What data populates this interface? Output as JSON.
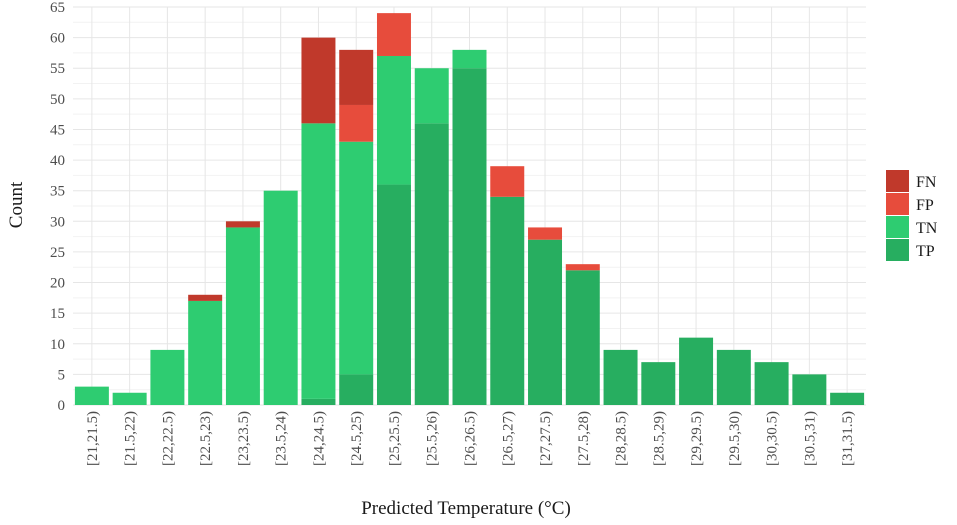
{
  "chart_data": {
    "type": "bar",
    "stacked": true,
    "xlabel": "Predicted Temperature (°C)",
    "ylabel": "Count",
    "ylim": [
      0,
      65
    ],
    "yticks": [
      0,
      5,
      10,
      15,
      20,
      25,
      30,
      35,
      40,
      45,
      50,
      55,
      60,
      65
    ],
    "grid": true,
    "legend_position": "right",
    "categories": [
      "[21,21.5)",
      "[21.5,22)",
      "[22,22.5)",
      "[22.5,23)",
      "[23,23.5)",
      "[23.5,24)",
      "[24,24.5)",
      "[24.5,25)",
      "[25,25.5)",
      "[25.5,26)",
      "[26,26.5)",
      "[26.5,27)",
      "[27,27.5)",
      "[27.5,28)",
      "[28,28.5)",
      "[28.5,29)",
      "[29,29.5)",
      "[29.5,30)",
      "[30,30.5)",
      "[30.5,31)",
      "[31,31.5)"
    ],
    "series": [
      {
        "name": "TP",
        "color": "#27ae60",
        "values": [
          0,
          0,
          0,
          0,
          0,
          0,
          1,
          5,
          36,
          46,
          55,
          34,
          27,
          22,
          9,
          7,
          11,
          9,
          7,
          5,
          2
        ]
      },
      {
        "name": "TN",
        "color": "#2ecc71",
        "values": [
          3,
          2,
          9,
          17,
          29,
          35,
          45,
          38,
          21,
          9,
          3,
          0,
          0,
          0,
          0,
          0,
          0,
          0,
          0,
          0,
          0
        ]
      },
      {
        "name": "FP",
        "color": "#e74c3c",
        "values": [
          0,
          0,
          0,
          0,
          0,
          0,
          0,
          6,
          7,
          0,
          0,
          5,
          2,
          1,
          0,
          0,
          0,
          0,
          0,
          0,
          0
        ]
      },
      {
        "name": "FN",
        "color": "#c0392b",
        "values": [
          0,
          0,
          0,
          1,
          1,
          0,
          14,
          9,
          0,
          0,
          0,
          0,
          0,
          0,
          0,
          0,
          0,
          0,
          0,
          0,
          0
        ]
      }
    ],
    "legend_order": [
      "FN",
      "FP",
      "TN",
      "TP"
    ]
  }
}
